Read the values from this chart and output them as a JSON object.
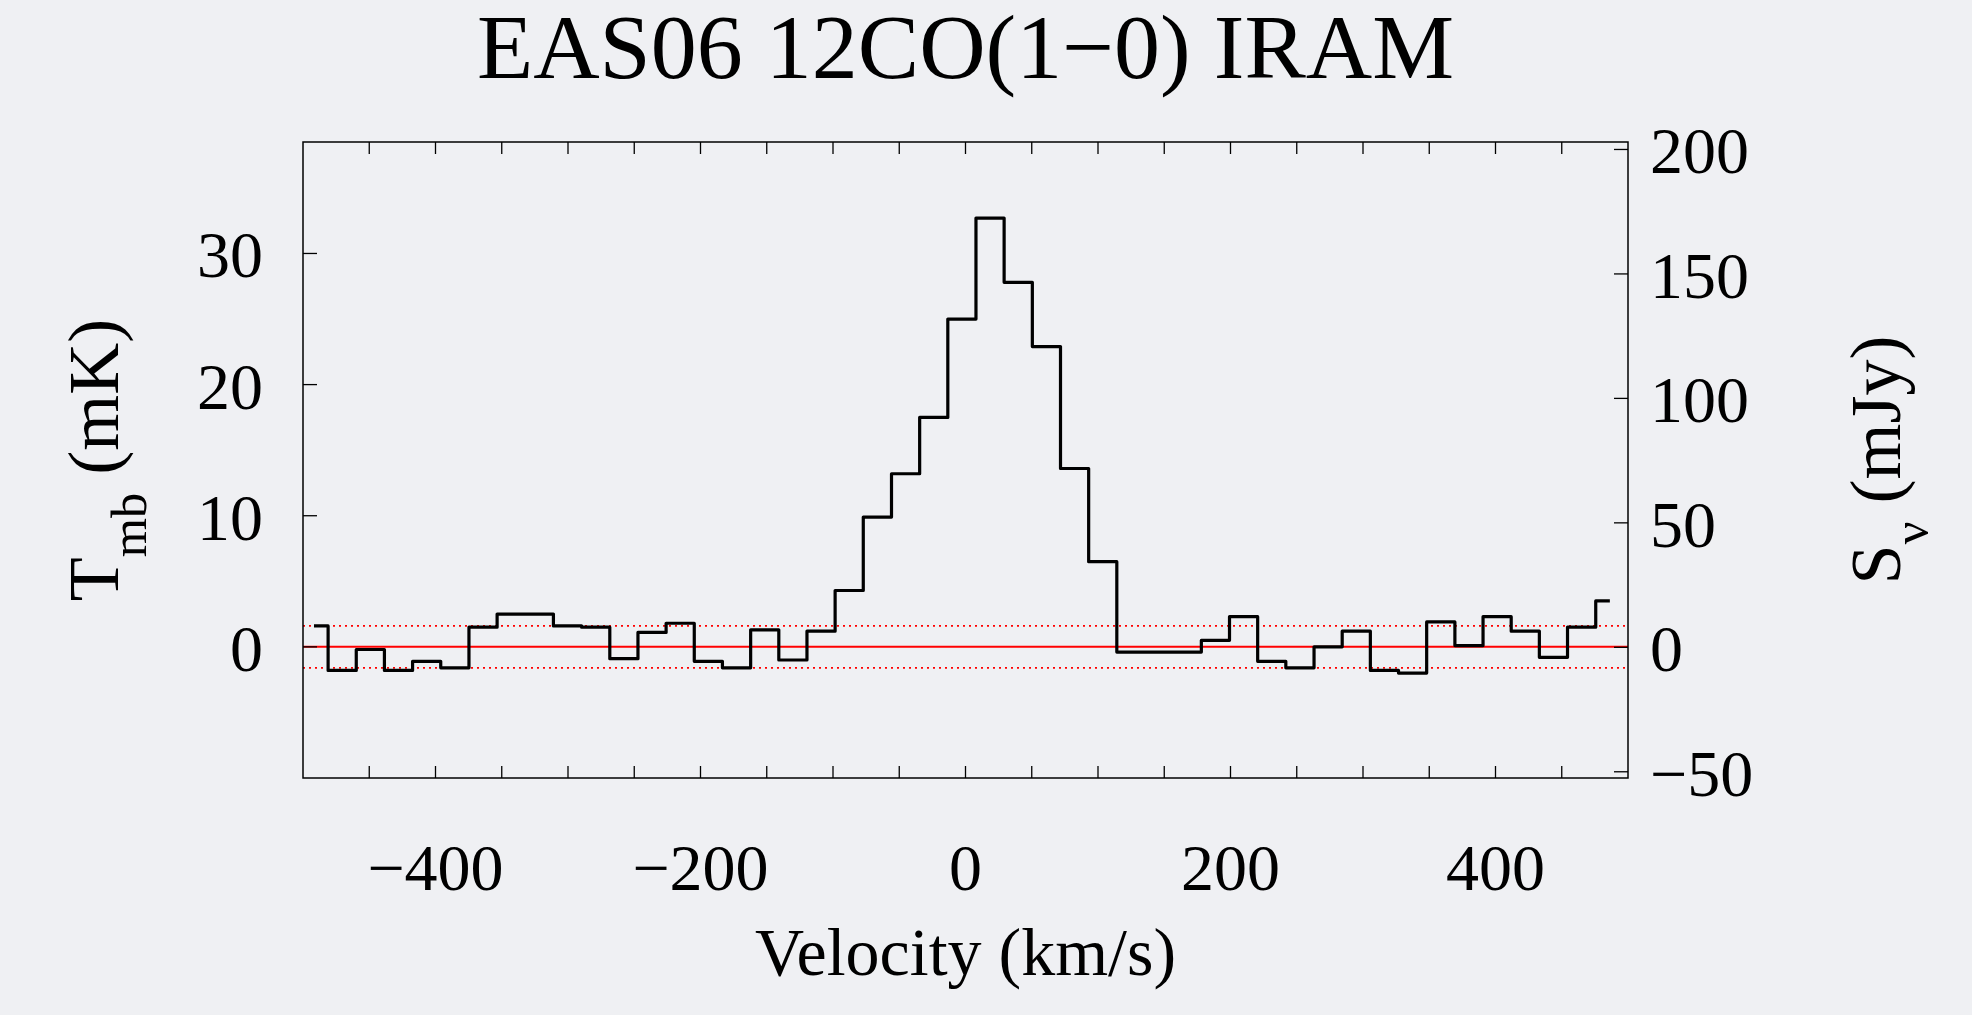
{
  "chart_data": {
    "type": "step",
    "title": "EAS06 12CO(1−0) IRAM",
    "xlabel": "Velocity (km/s)",
    "ylabel": "T$_{mb}$ (mK)",
    "y2label": "S$_{ν}$ (mJy)",
    "x": [
      -491.7,
      -470.4,
      -449.2,
      -427.9,
      -406.7,
      -385.4,
      -364.1,
      -342.9,
      -321.6,
      -300.4,
      -279.1,
      -257.8,
      -236.6,
      -215.3,
      -194.1,
      -172.8,
      -151.5,
      -130.3,
      -109.0,
      -87.8,
      -66.5,
      -45.2,
      -24.0,
      -2.7,
      18.5,
      39.8,
      61.1,
      82.3,
      103.6,
      124.8,
      146.1,
      167.4,
      188.6,
      209.9,
      231.1,
      252.4,
      273.7,
      294.9,
      316.2,
      337.4,
      358.7,
      380.0,
      401.2,
      422.5,
      443.7,
      465.0,
      486.3
    ],
    "series": [
      {
        "color": "#000000",
        "values": [
          1.6,
          -1.8,
          -0.2,
          -1.8,
          -1.1,
          -1.6,
          1.5,
          2.5,
          2.5,
          1.6,
          1.5,
          -0.9,
          1.1,
          1.8,
          -1.1,
          -1.6,
          1.3,
          -1.0,
          1.2,
          4.3,
          9.9,
          13.2,
          17.5,
          25.0,
          32.7,
          27.8,
          22.9,
          13.6,
          6.5,
          -0.4,
          -0.4,
          -0.4,
          0.5,
          2.3,
          -1.1,
          -1.6,
          0.0,
          1.2,
          -1.8,
          -2.0,
          1.9,
          0.1,
          2.3,
          1.2,
          -0.8,
          1.5,
          3.5
        ]
      }
    ],
    "xlim": [
      -500,
      500
    ],
    "ylim": [
      -10,
      38.5
    ],
    "y2lim": [
      -52.5,
      203
    ],
    "xticks": [
      {
        "value": -450,
        "label": null
      },
      -400,
      {
        "value": -350,
        "label": null
      },
      {
        "value": -300,
        "label": null
      },
      {
        "value": -250,
        "label": null
      },
      -200,
      {
        "value": -150,
        "label": null
      },
      {
        "value": -100,
        "label": null
      },
      {
        "value": -50,
        "label": null
      },
      0,
      {
        "value": 50,
        "label": null
      },
      {
        "value": 100,
        "label": null
      },
      {
        "value": 150,
        "label": null
      },
      200,
      {
        "value": 250,
        "label": null
      },
      {
        "value": 300,
        "label": null
      },
      {
        "value": 350,
        "label": null
      },
      400,
      {
        "value": 450,
        "label": null
      }
    ],
    "yticks": [
      0,
      10,
      20,
      30
    ],
    "y2ticks": [
      {
        "value": -50,
        "label": "−50"
      },
      0,
      50,
      100,
      150,
      200
    ],
    "ref_lines": [
      {
        "axis": "y",
        "value": 0,
        "color": "#ff0000",
        "line_style": "solid"
      },
      {
        "axis": "y",
        "value": 1.6,
        "color": "#ff0000",
        "line_style": "dotted"
      },
      {
        "axis": "y",
        "value": -1.6,
        "color": "#ff0000",
        "line_style": "dotted"
      }
    ],
    "grid": false
  }
}
